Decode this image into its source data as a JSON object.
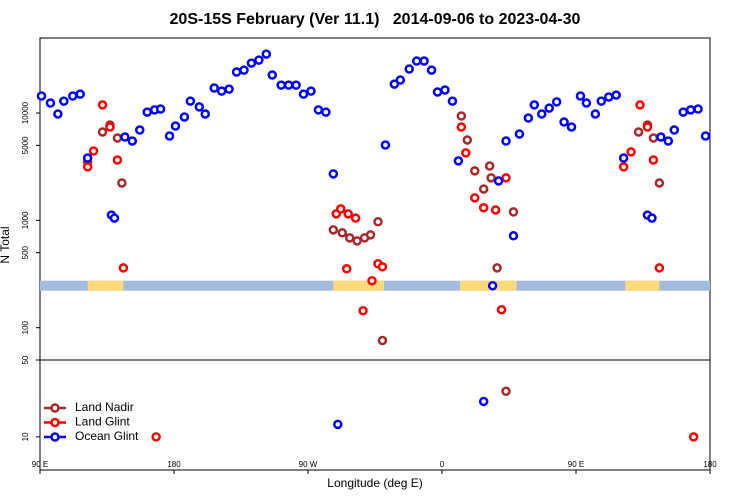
{
  "chart_data": {
    "type": "scatter",
    "title": "20S-15S February (Ver 11.1)   2014-09-06 to 2023-04-30",
    "xlabel": "Longitude (deg E)",
    "ylabel": "N Total",
    "xlim": [
      90,
      540
    ],
    "xticks": [
      {
        "value": 90,
        "label": "90 E"
      },
      180,
      {
        "value": 270,
        "label": "90 W"
      },
      {
        "value": 360,
        "label": "0"
      },
      {
        "value": 450,
        "label": "90 E"
      },
      {
        "value": 540,
        "label": "180"
      }
    ],
    "log_y": true,
    "panels": [
      {
        "ylim": [
          50,
          50000
        ],
        "yticks": [
          100,
          500,
          1000,
          5000,
          10000
        ]
      },
      {
        "ylim": [
          5,
          50
        ],
        "yticks": [
          50,
          10
        ]
      }
    ],
    "strip": {
      "value": 246,
      "ocean_color": "#a3bbdd",
      "land_color": "#ffd97a",
      "land": [
        [
          122,
          146
        ],
        [
          287,
          321
        ],
        [
          372,
          410
        ],
        [
          483,
          506
        ]
      ]
    },
    "legend": "bottom-left",
    "series": [
      {
        "name": "Land Nadir",
        "color": "#a52a2a",
        "x": [
          122,
          132,
          137,
          142,
          145,
          287,
          293,
          298,
          303,
          308,
          312,
          317,
          320,
          373,
          377,
          382,
          388,
          392,
          393,
          397,
          403,
          408,
          492,
          498,
          502,
          506
        ],
        "values": [
          3500,
          6660,
          7730,
          5850,
          2230,
          816,
          766,
          687,
          644,
          687,
          733,
          970,
          76,
          9380,
          5610,
          2890,
          1960,
          3210,
          2490,
          361,
          26,
          1200,
          6660,
          7730,
          5850,
          2230
        ]
      },
      {
        "name": "Land Glint",
        "color": "#ff0000",
        "x": [
          122,
          126,
          132,
          137,
          142,
          146,
          168,
          289,
          292,
          296,
          297,
          302,
          307,
          313,
          317,
          320,
          373,
          376,
          382,
          388,
          396,
          400,
          403,
          482,
          487,
          493,
          498,
          502,
          506,
          529
        ],
        "values": [
          3150,
          4430,
          11900,
          7410,
          3650,
          361,
          10,
          1150,
          1280,
          354,
          1150,
          1050,
          144,
          274,
          394,
          369,
          7410,
          4250,
          1620,
          1310,
          1250,
          147,
          2490,
          3150,
          4340,
          11900,
          7410,
          3650,
          361,
          10
        ]
      },
      {
        "name": "Ocean Glint",
        "color": "#0000ff",
        "x": [
          91,
          97,
          102,
          106,
          112,
          117,
          122,
          138,
          140,
          147,
          152,
          157,
          162,
          167,
          171,
          177,
          181,
          187,
          191,
          197,
          201,
          207,
          212,
          217,
          222,
          227,
          232,
          237,
          242,
          246,
          252,
          257,
          262,
          267,
          272,
          277,
          282,
          287,
          290,
          322,
          328,
          332,
          338,
          343,
          348,
          353,
          357,
          362,
          367,
          371,
          394,
          388,
          398,
          403,
          408,
          412,
          418,
          422,
          427,
          432,
          437,
          442,
          447,
          453,
          457,
          463,
          467,
          472,
          477,
          482,
          498,
          501,
          507,
          512,
          516,
          522,
          527,
          532,
          537
        ],
        "values": [
          14400,
          12400,
          9800,
          12900,
          14400,
          15000,
          3810,
          1120,
          1050,
          5980,
          5490,
          6950,
          10200,
          10700,
          10900,
          6110,
          7570,
          9180,
          12900,
          11400,
          9800,
          17100,
          16000,
          16700,
          24100,
          25100,
          29200,
          31100,
          35400,
          22600,
          18200,
          18200,
          18200,
          15000,
          16000,
          10700,
          10200,
          2710,
          13,
          5040,
          18600,
          20300,
          25700,
          30500,
          30500,
          25100,
          15700,
          16400,
          12900,
          3580,
          246,
          21,
          2330,
          5490,
          718,
          6380,
          8980,
          11900,
          9800,
          11100,
          12700,
          8240,
          7410,
          14400,
          12400,
          9800,
          12900,
          14100,
          14700,
          3810,
          1120,
          1050,
          5980,
          5490,
          6950,
          10200,
          10700,
          10900,
          6110
        ]
      }
    ]
  }
}
